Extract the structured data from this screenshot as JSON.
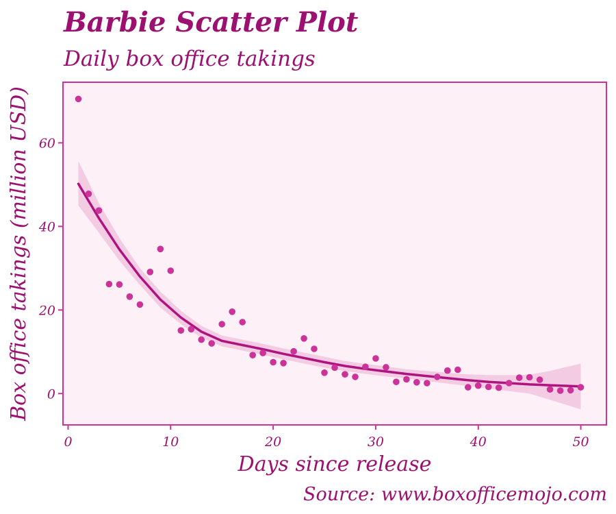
{
  "chart_data": {
    "type": "scatter",
    "title": "Barbie Scatter Plot",
    "subtitle": "Daily box office takings",
    "xlabel": "Days since release",
    "ylabel": "Box office takings (million USD)",
    "caption": "Source: www.boxofficemojo.com",
    "xlim": [
      -0.5,
      52.5
    ],
    "ylim": [
      -7.5,
      74.5
    ],
    "x_ticks": [
      0,
      10,
      20,
      30,
      40,
      50
    ],
    "y_ticks": [
      0,
      20,
      40,
      60
    ],
    "grid": false,
    "series": [
      {
        "kind": "points",
        "x": [
          1,
          2,
          3,
          4,
          5,
          6,
          7,
          8,
          9,
          10,
          11,
          12,
          13,
          14,
          15,
          16,
          17,
          18,
          19,
          20,
          21,
          22,
          23,
          24,
          25,
          26,
          27,
          28,
          29,
          30,
          31,
          32,
          33,
          34,
          35,
          36,
          37,
          38,
          39,
          40,
          41,
          42,
          43,
          44,
          45,
          46,
          47,
          48,
          49,
          50
        ],
        "y": [
          70.5,
          47.8,
          43.8,
          26.2,
          26.1,
          23.2,
          21.3,
          29.1,
          34.6,
          29.4,
          15.1,
          15.4,
          12.9,
          12,
          16.6,
          19.6,
          17.1,
          9.2,
          9.7,
          7.5,
          7.3,
          10.1,
          13.2,
          10.7,
          5,
          6.2,
          4.6,
          4,
          6.4,
          8.4,
          6.3,
          2.8,
          3.4,
          2.7,
          2.5,
          4,
          5.5,
          5.7,
          1.5,
          1.9,
          1.6,
          1.4,
          2.5,
          3.8,
          3.9,
          3.3,
          1,
          0.7,
          0.8,
          1.5
        ]
      },
      {
        "kind": "smooth",
        "x": [
          1,
          3,
          5,
          7,
          9,
          11,
          13,
          15,
          17,
          19,
          21,
          23,
          25,
          27,
          29,
          31,
          33,
          35,
          37,
          39,
          41,
          43,
          45,
          47,
          49,
          50
        ],
        "y": [
          50.2,
          42,
          34.5,
          28,
          22.5,
          18.2,
          14.8,
          12.6,
          11.6,
          10.6,
          9.5,
          8.5,
          7.5,
          6.6,
          5.9,
          5.3,
          4.7,
          4.2,
          3.7,
          3.2,
          2.8,
          2.5,
          2.2,
          2,
          1.8,
          1.7
        ],
        "lower": [
          45,
          38.5,
          31.8,
          26,
          20.6,
          16.6,
          13.4,
          11.3,
          10.3,
          9.3,
          8.2,
          7.2,
          6.2,
          5.4,
          4.7,
          4.1,
          3.6,
          3,
          2.4,
          1.8,
          1.2,
          0.6,
          0,
          -1.5,
          -3,
          -3.8
        ],
        "upper": [
          55.6,
          45.6,
          37.2,
          30,
          24.4,
          19.8,
          16.2,
          13.9,
          12.9,
          11.9,
          10.8,
          9.8,
          8.8,
          7.8,
          7.1,
          6.5,
          5.8,
          5.4,
          5,
          4.6,
          4.4,
          4.4,
          4.5,
          5.4,
          6.6,
          7.2
        ]
      }
    ],
    "colors": {
      "point": "#cc3399",
      "line": "#ad1480",
      "band": "#f1c6df",
      "panel": "#fdf0f6",
      "border": "#cc3399",
      "text": "#9c1170"
    }
  }
}
